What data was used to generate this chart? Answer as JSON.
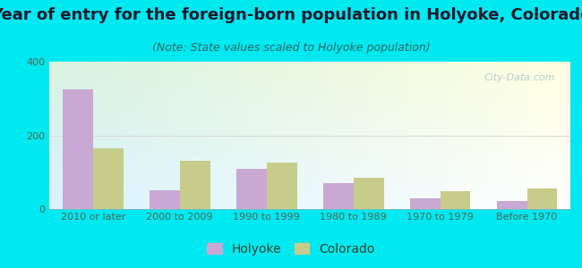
{
  "title": "Year of entry for the foreign-born population in Holyoke, Colorado",
  "subtitle": "(Note: State values scaled to Holyoke population)",
  "categories": [
    "2010 or later",
    "2000 to 2009",
    "1990 to 1999",
    "1980 to 1989",
    "1970 to 1979",
    "Before 1970"
  ],
  "holyoke_values": [
    325,
    50,
    110,
    70,
    28,
    22
  ],
  "colorado_values": [
    165,
    130,
    125,
    85,
    48,
    55
  ],
  "holyoke_color": "#c9a8d4",
  "colorado_color": "#c8cc8a",
  "ylim": [
    0,
    400
  ],
  "yticks": [
    0,
    200,
    400
  ],
  "bar_width": 0.35,
  "outer_bg": "#00e8f0",
  "title_fontsize": 13,
  "subtitle_fontsize": 9,
  "axis_label_fontsize": 8,
  "legend_fontsize": 10,
  "watermark_text": "City-Data.com",
  "watermark_color": "#b0c8c8",
  "grid_color": "#d8ddd8",
  "title_color": "#1a1a2e",
  "subtitle_color": "#336666",
  "tick_color": "#556655",
  "legend_color": "#334433"
}
